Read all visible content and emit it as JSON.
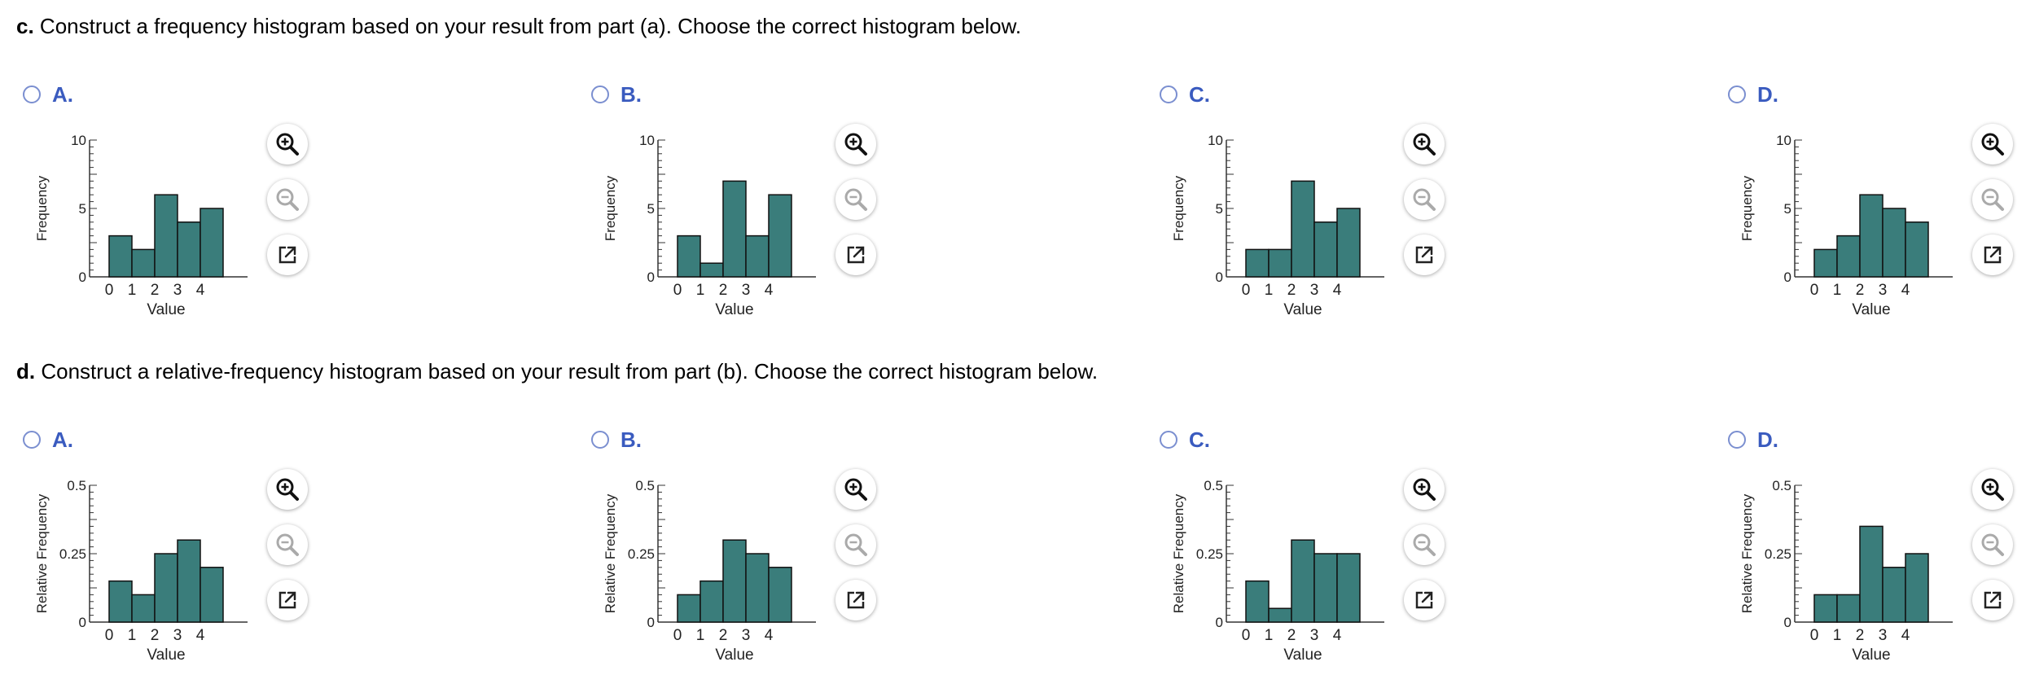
{
  "sections": [
    {
      "id": "c",
      "prefix": "c.",
      "text": "Construct a frequency histogram based on your result from part (a). Choose the correct histogram below.",
      "ylabel": "Frequency",
      "xlabel": "Value",
      "yticks": [
        "0",
        "5",
        "10"
      ],
      "ymax": 10,
      "options": [
        {
          "letter": "A.",
          "values": [
            3,
            2,
            6,
            4,
            5
          ]
        },
        {
          "letter": "B.",
          "values": [
            3,
            1,
            7,
            3,
            6
          ]
        },
        {
          "letter": "C.",
          "values": [
            2,
            2,
            7,
            4,
            5
          ]
        },
        {
          "letter": "D.",
          "values": [
            2,
            3,
            6,
            5,
            4
          ]
        }
      ]
    },
    {
      "id": "d",
      "prefix": "d.",
      "text": "Construct a relative-frequency histogram based on your result from part (b). Choose the correct histogram below.",
      "ylabel": "Relative Frequency",
      "xlabel": "Value",
      "yticks": [
        "0",
        "0.25",
        "0.5"
      ],
      "ymax": 0.5,
      "options": [
        {
          "letter": "A.",
          "values": [
            0.15,
            0.1,
            0.25,
            0.3,
            0.2
          ]
        },
        {
          "letter": "B.",
          "values": [
            0.1,
            0.15,
            0.3,
            0.25,
            0.2
          ]
        },
        {
          "letter": "C.",
          "values": [
            0.15,
            0.05,
            0.3,
            0.25,
            0.25
          ]
        },
        {
          "letter": "D.",
          "values": [
            0.1,
            0.1,
            0.35,
            0.2,
            0.25
          ]
        }
      ]
    }
  ],
  "xcategories": [
    "0",
    "1",
    "2",
    "3",
    "4"
  ],
  "bar_color": "#3a7d7b",
  "radio_color": "#7b8fd0",
  "letter_color": "#3a5bbf",
  "tools": [
    {
      "name": "zoom-in-icon"
    },
    {
      "name": "zoom-out-icon"
    },
    {
      "name": "open-new-window-icon"
    }
  ],
  "chart_data": [
    {
      "type": "bar",
      "categories": [
        "0",
        "1",
        "2",
        "3",
        "4"
      ],
      "values": [
        3,
        2,
        6,
        4,
        5
      ],
      "xlabel": "Value",
      "ylabel": "Frequency",
      "ylim": [
        0,
        10
      ]
    },
    {
      "type": "bar",
      "categories": [
        "0",
        "1",
        "2",
        "3",
        "4"
      ],
      "values": [
        3,
        1,
        7,
        3,
        6
      ],
      "xlabel": "Value",
      "ylabel": "Frequency",
      "ylim": [
        0,
        10
      ]
    },
    {
      "type": "bar",
      "categories": [
        "0",
        "1",
        "2",
        "3",
        "4"
      ],
      "values": [
        2,
        2,
        7,
        4,
        5
      ],
      "xlabel": "Value",
      "ylabel": "Frequency",
      "ylim": [
        0,
        10
      ]
    },
    {
      "type": "bar",
      "categories": [
        "0",
        "1",
        "2",
        "3",
        "4"
      ],
      "values": [
        2,
        3,
        6,
        5,
        4
      ],
      "xlabel": "Value",
      "ylabel": "Frequency",
      "ylim": [
        0,
        10
      ]
    },
    {
      "type": "bar",
      "categories": [
        "0",
        "1",
        "2",
        "3",
        "4"
      ],
      "values": [
        0.15,
        0.1,
        0.25,
        0.3,
        0.2
      ],
      "xlabel": "Value",
      "ylabel": "Relative Frequency",
      "ylim": [
        0,
        0.5
      ]
    },
    {
      "type": "bar",
      "categories": [
        "0",
        "1",
        "2",
        "3",
        "4"
      ],
      "values": [
        0.1,
        0.15,
        0.3,
        0.25,
        0.2
      ],
      "xlabel": "Value",
      "ylabel": "Relative Frequency",
      "ylim": [
        0,
        0.5
      ]
    },
    {
      "type": "bar",
      "categories": [
        "0",
        "1",
        "2",
        "3",
        "4"
      ],
      "values": [
        0.15,
        0.05,
        0.3,
        0.25,
        0.25
      ],
      "xlabel": "Value",
      "ylabel": "Relative Frequency",
      "ylim": [
        0,
        0.5
      ]
    },
    {
      "type": "bar",
      "categories": [
        "0",
        "1",
        "2",
        "3",
        "4"
      ],
      "values": [
        0.1,
        0.1,
        0.35,
        0.2,
        0.25
      ],
      "xlabel": "Value",
      "ylabel": "Relative Frequency",
      "ylim": [
        0,
        0.5
      ]
    }
  ]
}
